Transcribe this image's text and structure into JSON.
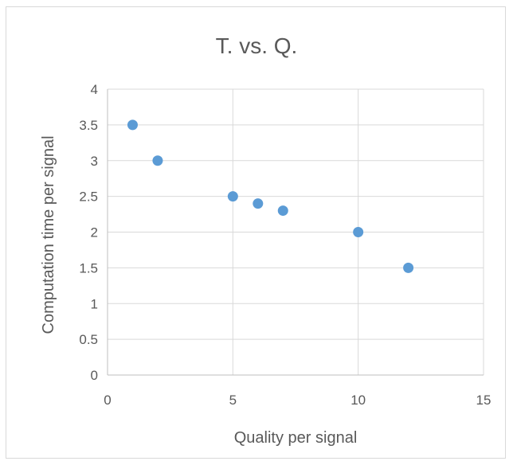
{
  "chart_data": {
    "type": "scatter",
    "title": "T. vs. Q.",
    "xlabel": "Quality per signal",
    "ylabel": "Computation time per signal",
    "xlim": [
      0,
      15
    ],
    "ylim": [
      0,
      4
    ],
    "xticks": [
      "0",
      "5",
      "10",
      "15"
    ],
    "yticks": [
      "0",
      "0.5",
      "1",
      "1.5",
      "2",
      "2.5",
      "3",
      "3.5",
      "4"
    ],
    "grid": true,
    "legend": "none",
    "series": [
      {
        "color": "#5b9bd5",
        "points": [
          {
            "x": 1,
            "y": 3.5
          },
          {
            "x": 2,
            "y": 3
          },
          {
            "x": 5,
            "y": 2.5
          },
          {
            "x": 6,
            "y": 2.4
          },
          {
            "x": 7,
            "y": 2.3
          },
          {
            "x": 10,
            "y": 2
          },
          {
            "x": 12,
            "y": 1.5
          }
        ]
      }
    ]
  }
}
